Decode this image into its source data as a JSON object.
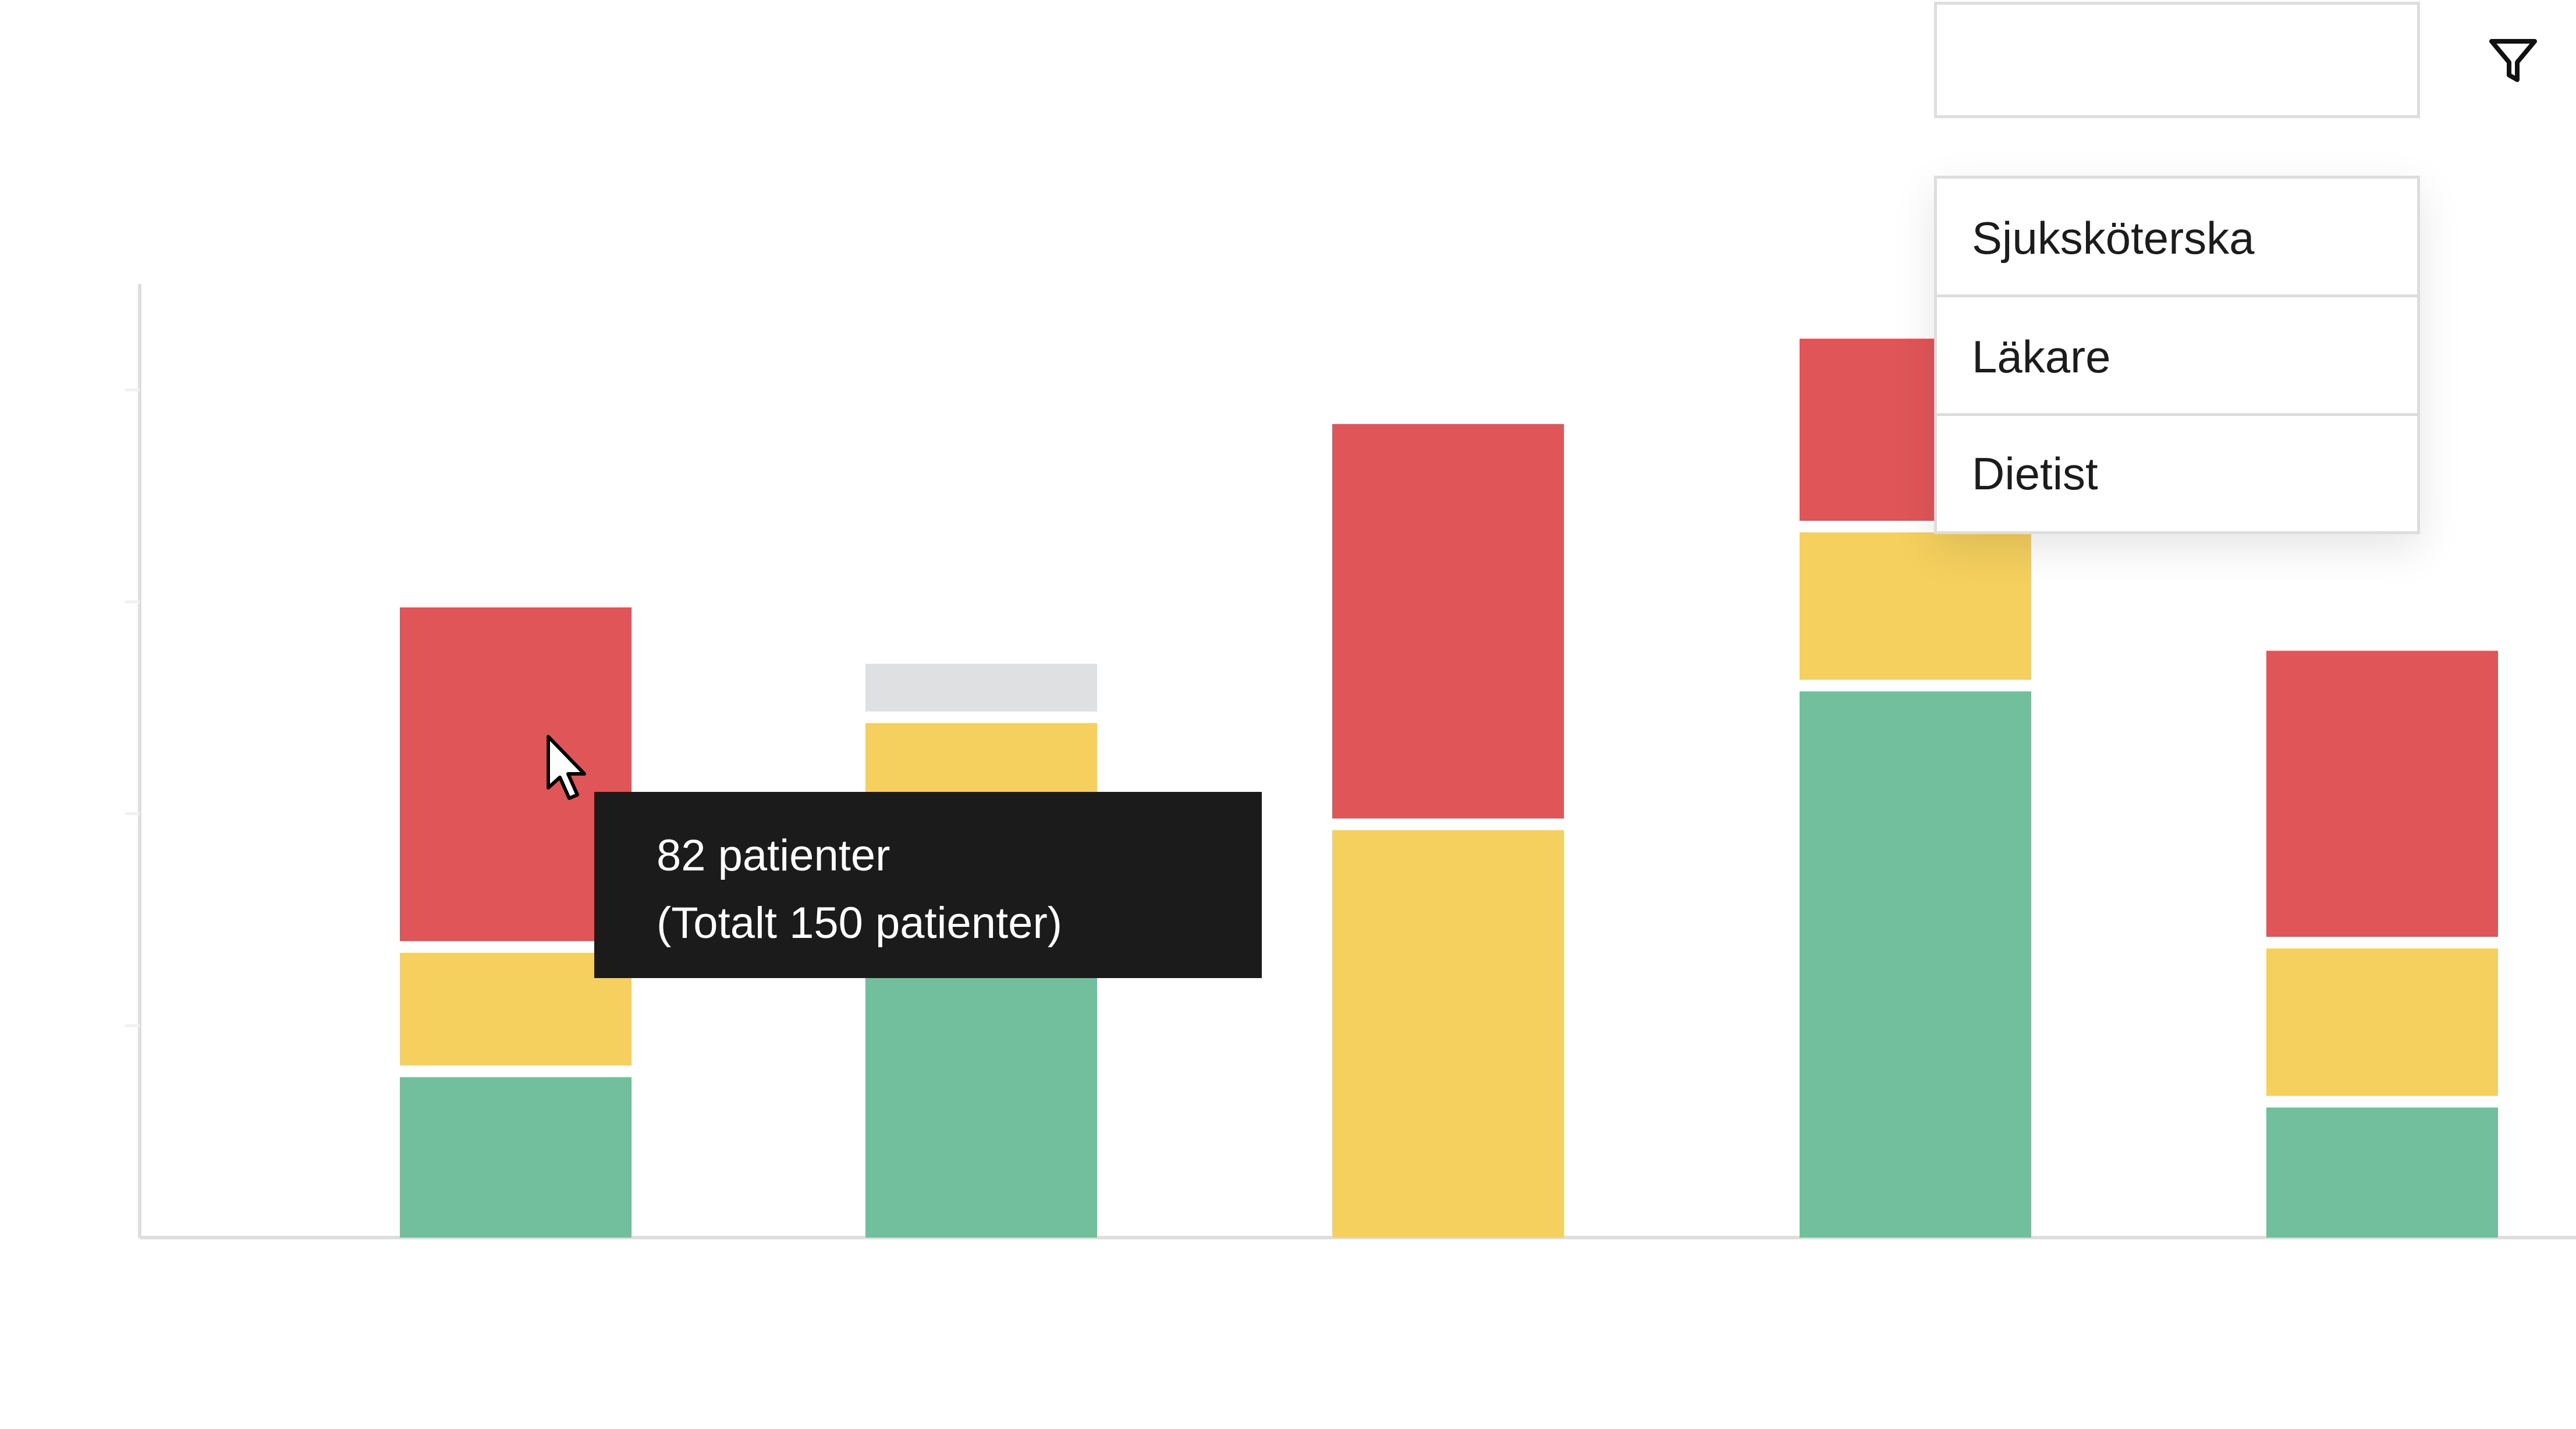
{
  "colors": {
    "red": "#e05658",
    "yellow": "#f5d05e",
    "green": "#72bf9e",
    "gray": "#dfe0e1",
    "axis": "#dedede",
    "faint_label": "#f1f1f1"
  },
  "filter": {
    "selected_value": "",
    "icon": "filter-icon"
  },
  "dropdown": {
    "items": [
      "Sjuksköterska",
      "Läkare",
      "Dietist"
    ]
  },
  "tooltip": {
    "line1": "82 patienter",
    "line2": "(Totalt 150 patienter)"
  },
  "chart_data": {
    "type": "bar",
    "stacked": true,
    "ylim": [
      0,
      220
    ],
    "grid": false,
    "categories": [
      "",
      "",
      "",
      "",
      ""
    ],
    "series": [
      {
        "color": "green",
        "values": [
          37,
          67,
          0,
          126,
          30
        ]
      },
      {
        "color": "yellow",
        "values": [
          26,
          49,
          94,
          34,
          34
        ]
      },
      {
        "color": "red",
        "values": [
          77,
          0,
          91,
          42,
          66
        ]
      },
      {
        "color": "gray",
        "values": [
          0,
          11,
          0,
          0,
          0
        ]
      }
    ]
  }
}
